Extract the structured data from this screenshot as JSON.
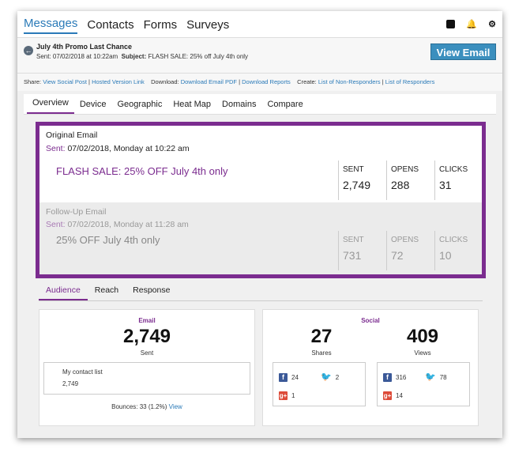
{
  "nav": {
    "tabs": [
      "Messages",
      "Contacts",
      "Forms",
      "Surveys"
    ],
    "help_icon": "help-icon",
    "bell_icon": "bell-icon",
    "gear_icon": "gear-icon"
  },
  "message": {
    "title": "July 4th Promo Last Chance",
    "sent_label": "Sent:",
    "sent_value": "07/02/2018 at 10:22am",
    "subject_label": "Subject:",
    "subject_value": "FLASH SALE: 25% off July 4th only",
    "view_email_label": "View Email"
  },
  "share_row": {
    "share_label": "Share:",
    "view_social": "View Social Post",
    "hosted": "Hosted Version Link",
    "download_label": "Download:",
    "download_pdf": "Download Email PDF",
    "download_reports": "Download Reports",
    "create_label": "Create:",
    "non_responders": "List of Non-Responders",
    "responders": "List of Responders",
    "sep": "|"
  },
  "report_tabs": [
    "Overview",
    "Device",
    "Geographic",
    "Heat Map",
    "Domains",
    "Compare"
  ],
  "original": {
    "title": "Original Email",
    "sent_label": "Sent:",
    "sent_value": "07/02/2018, Monday at 10:22 am",
    "subject": "FLASH SALE: 25% OFF July 4th only",
    "stats": [
      {
        "label": "SENT",
        "value": "2,749"
      },
      {
        "label": "OPENS",
        "value": "288"
      },
      {
        "label": "CLICKS",
        "value": "31"
      }
    ]
  },
  "followup": {
    "title": "Follow-Up Email",
    "sent_label": "Sent:",
    "sent_value": "07/02/2018, Monday at 11:28 am",
    "subject": "25% OFF July 4th only",
    "stats": [
      {
        "label": "SENT",
        "value": "731"
      },
      {
        "label": "OPENS",
        "value": "72"
      },
      {
        "label": "CLICKS",
        "value": "10"
      }
    ]
  },
  "audience_tabs": [
    "Audience",
    "Reach",
    "Response"
  ],
  "email_card": {
    "title": "Email",
    "sent_count": "2,749",
    "sent_label": "Sent",
    "list_name": "My contact list",
    "list_count": "2,749",
    "bounces_text": "Bounces: 33 (1.2%)",
    "bounces_link": "View"
  },
  "social_card": {
    "title": "Social",
    "shares_count": "27",
    "shares_label": "Shares",
    "views_count": "409",
    "views_label": "Views",
    "shares_breakdown": {
      "facebook": "24",
      "twitter": "2",
      "google_plus": "1"
    },
    "views_breakdown": {
      "facebook": "316",
      "twitter": "78",
      "google_plus": "14"
    }
  }
}
